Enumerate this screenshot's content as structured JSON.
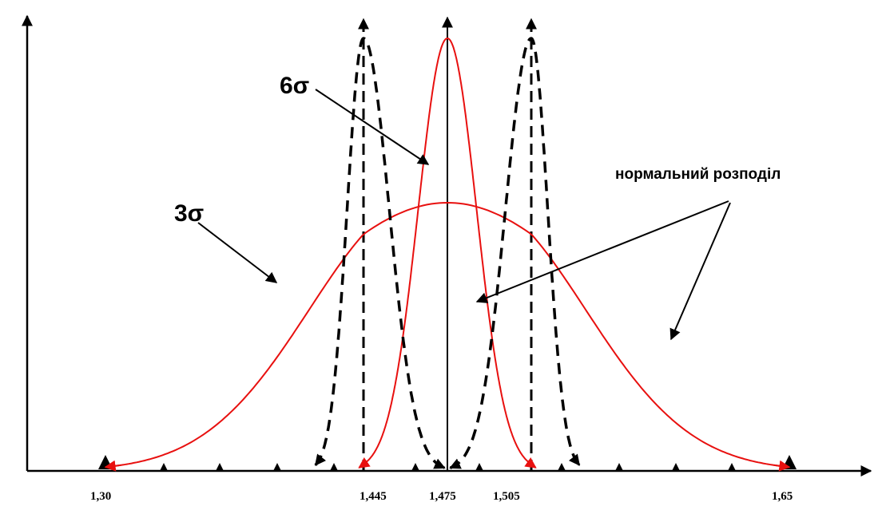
{
  "chart_data": {
    "type": "line",
    "title": "",
    "xlabel": "",
    "ylabel": "",
    "x_ticks": [
      {
        "value": 1.3,
        "label": "1,30"
      },
      {
        "value": 1.445,
        "label": "1,445"
      },
      {
        "value": 1.475,
        "label": "1,475"
      },
      {
        "value": 1.505,
        "label": "1,505"
      },
      {
        "value": 1.65,
        "label": "1,65"
      }
    ],
    "xlim": [
      1.26,
      1.73
    ],
    "ylim": [
      0,
      1.0
    ],
    "grid": false,
    "series": [
      {
        "key": "wide",
        "style": "solid",
        "color": "#e8100f",
        "mean": 1.475,
        "sigma": 0.06,
        "peak": 0.62,
        "x_range": [
          1.3,
          1.65
        ]
      },
      {
        "key": "narrow",
        "style": "solid",
        "color": "#e8100f",
        "mean": 1.475,
        "sigma": 0.0104,
        "peak": 1.0,
        "x_range": [
          1.4425,
          1.5075
        ]
      },
      {
        "key": "shift-left",
        "style": "dashed",
        "color": "#000000",
        "mean": 1.445,
        "sigma": 0.0092,
        "peak": 1.0,
        "x_range": [
          1.418,
          1.474
        ]
      },
      {
        "key": "shift-right",
        "style": "dashed",
        "color": "#000000",
        "mean": 1.505,
        "sigma": 0.0092,
        "peak": 1.0,
        "x_range": [
          1.476,
          1.532
        ]
      }
    ],
    "center_line_x": 1.475,
    "annotations": [
      {
        "key": "six-sigma",
        "text": "6σ"
      },
      {
        "key": "three-sigma",
        "text": "3σ"
      },
      {
        "key": "normal",
        "text": "нормальний розподіл"
      }
    ],
    "colors": {
      "red": "#e8100f",
      "black": "#000000"
    }
  }
}
